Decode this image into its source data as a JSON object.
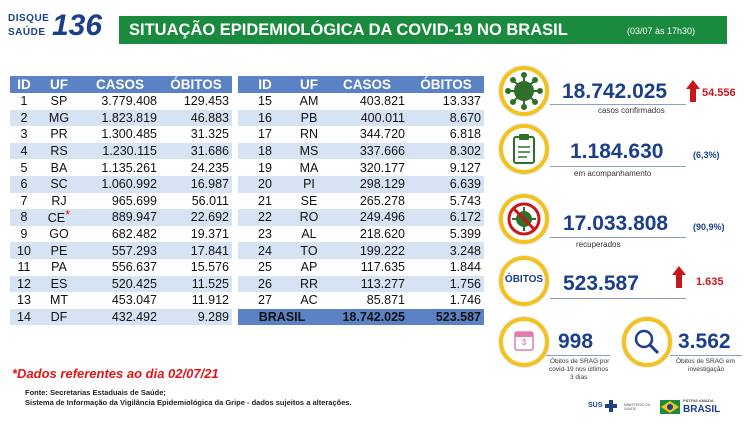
{
  "logo": {
    "line1": "DISQUE",
    "line2": "SAÚDE",
    "number": "136"
  },
  "header": {
    "title": "SITUAÇÃO EPIDEMIOLÓGICA DA COVID-19 NO BRASIL",
    "date": "(03/07 às 17h30)"
  },
  "table": {
    "columns": [
      "ID",
      "UF",
      "CASOS",
      "ÓBITOS"
    ],
    "left_rows": [
      [
        "1",
        "SP",
        "3.779.408",
        "129.453"
      ],
      [
        "2",
        "MG",
        "1.823.819",
        "46.883"
      ],
      [
        "3",
        "PR",
        "1.300.485",
        "31.325"
      ],
      [
        "4",
        "RS",
        "1.230.115",
        "31.686"
      ],
      [
        "5",
        "BA",
        "1.135.261",
        "24.235"
      ],
      [
        "6",
        "SC",
        "1.060.992",
        "16.987"
      ],
      [
        "7",
        "RJ",
        "965.699",
        "56.011"
      ],
      [
        "8",
        "CE",
        "889.947",
        "22.692"
      ],
      [
        "9",
        "GO",
        "682.482",
        "19.371"
      ],
      [
        "10",
        "PE",
        "557.293",
        "17.841"
      ],
      [
        "11",
        "PA",
        "556.637",
        "15.576"
      ],
      [
        "12",
        "ES",
        "520.425",
        "11.525"
      ],
      [
        "13",
        "MT",
        "453.047",
        "11.912"
      ],
      [
        "14",
        "DF",
        "432.492",
        "9.289"
      ]
    ],
    "ce_star": "*",
    "right_rows": [
      [
        "15",
        "AM",
        "403.821",
        "13.337"
      ],
      [
        "16",
        "PB",
        "400.011",
        "8.670"
      ],
      [
        "17",
        "RN",
        "344.720",
        "6.818"
      ],
      [
        "18",
        "MS",
        "337.666",
        "8.302"
      ],
      [
        "19",
        "MA",
        "320.177",
        "9.127"
      ],
      [
        "20",
        "PI",
        "298.129",
        "6.639"
      ],
      [
        "21",
        "SE",
        "265.278",
        "5.743"
      ],
      [
        "22",
        "RO",
        "249.496",
        "6.172"
      ],
      [
        "23",
        "AL",
        "218.620",
        "5.399"
      ],
      [
        "24",
        "TO",
        "199.222",
        "3.248"
      ],
      [
        "25",
        "AP",
        "117.635",
        "1.844"
      ],
      [
        "26",
        "RR",
        "113.277",
        "1.756"
      ],
      [
        "27",
        "AC",
        "85.871",
        "1.746"
      ]
    ],
    "total": {
      "label": "BRASIL",
      "casos": "18.742.025",
      "obitos": "523.587"
    }
  },
  "footnote": "*Dados referentes ao dia 02/07/21",
  "source_line1": "Fonte: Secretarias Estaduais de Saúde;",
  "source_line2": "Sistema de Informação da Vigilância Epidemiológica da Gripe - dados sujeitos a alterações.",
  "stats": {
    "confirmados": {
      "value": "18.742.025",
      "increase": "54.556",
      "label": "casos confirmados"
    },
    "acompanhamento": {
      "value": "1.184.630",
      "pct": "(6,3%)",
      "label": "em acompanhamento"
    },
    "recuperados": {
      "value": "17.033.808",
      "pct": "(90,9%)",
      "label": "recuperados"
    },
    "obitos": {
      "badge": "ÓBITOS",
      "value": "523.587",
      "increase": "1.635"
    },
    "srag_dias": {
      "value": "998",
      "label1": "Óbitos de SRAG por",
      "label2": "covid-19 nos últimos",
      "label3": "3 dias",
      "cal_num": "3"
    },
    "srag_invest": {
      "value": "3.562",
      "label1": "Óbitos de SRAG em",
      "label2": "investigação"
    }
  },
  "footer": {
    "sus": "SUS",
    "ministerio": "MINISTÉRIO DA SAÚDE",
    "patria": "PÁTRIA AMADA",
    "brasil": "BRASIL"
  },
  "colors": {
    "green": "#1a8a3e",
    "blue": "#1b3f8b",
    "table_header": "#5b82c5",
    "row_alt": "#d6e3f3",
    "yellow": "#f4c21f",
    "red": "#c8161d"
  }
}
